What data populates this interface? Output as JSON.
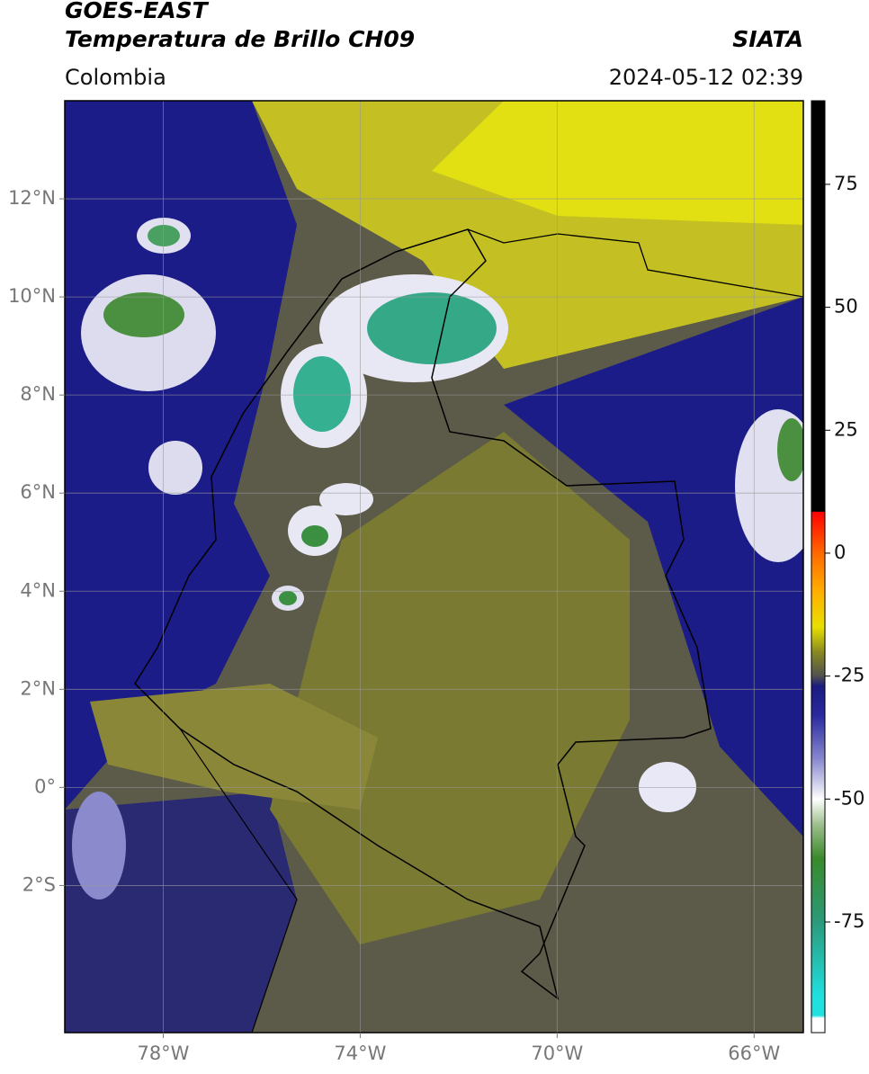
{
  "chart_data": {
    "type": "map",
    "title": "GOES-EAST",
    "subtitle": "Temperatura de Brillo CH09",
    "source": "SIATA",
    "region": "Colombia",
    "timestamp": "2024-05-12 02:39",
    "xlim": [
      -80,
      -65
    ],
    "ylim": [
      -5,
      14
    ],
    "xticks": [
      {
        "value": -78,
        "label": "78°W"
      },
      {
        "value": -74,
        "label": "74°W"
      },
      {
        "value": -70,
        "label": "70°W"
      },
      {
        "value": -66,
        "label": "66°W"
      }
    ],
    "yticks": [
      {
        "value": 12,
        "label": "12°N"
      },
      {
        "value": 10,
        "label": "10°N"
      },
      {
        "value": 8,
        "label": "8°N"
      },
      {
        "value": 6,
        "label": "6°N"
      },
      {
        "value": 4,
        "label": "4°N"
      },
      {
        "value": 2,
        "label": "2°N"
      },
      {
        "value": 0,
        "label": "0°"
      },
      {
        "value": -2,
        "label": "2°S"
      }
    ],
    "grid": true,
    "colorbar": {
      "lim": [
        -97.5,
        92
      ],
      "ticks": [
        75,
        50,
        25,
        0,
        -25,
        -50,
        -75
      ],
      "stops": [
        {
          "value": 92,
          "color": "#000000"
        },
        {
          "value": 8.5,
          "color": "#000000"
        },
        {
          "value": 8.4,
          "color": "#ff0000"
        },
        {
          "value": 0,
          "color": "#ff6a00"
        },
        {
          "value": -8,
          "color": "#ffb000"
        },
        {
          "value": -15,
          "color": "#e8e000"
        },
        {
          "value": -20,
          "color": "#8a8a20"
        },
        {
          "value": -25,
          "color": "#505050"
        },
        {
          "value": -27,
          "color": "#1a1a80"
        },
        {
          "value": -33,
          "color": "#2a2aa0"
        },
        {
          "value": -42,
          "color": "#8a8ad0"
        },
        {
          "value": -50,
          "color": "#ffffff"
        },
        {
          "value": -55,
          "color": "#a0c090"
        },
        {
          "value": -62,
          "color": "#3a8a2a"
        },
        {
          "value": -75,
          "color": "#2a9a7a"
        },
        {
          "value": -90,
          "color": "#20e0e0"
        },
        {
          "value": -94,
          "color": "#20e0e0"
        },
        {
          "value": -94.5,
          "color": "#ffffff"
        },
        {
          "value": -97.5,
          "color": "#ffffff"
        }
      ]
    }
  }
}
